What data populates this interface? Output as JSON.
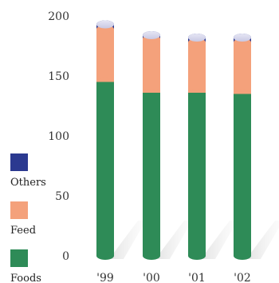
{
  "chart_data": {
    "type": "bar",
    "stacked": true,
    "categories": [
      "'99",
      "'00",
      "'01",
      "'02"
    ],
    "series": [
      {
        "name": "Foods",
        "color": "#2e8b57",
        "values": [
          145,
          136,
          136,
          135
        ]
      },
      {
        "name": "Feed",
        "color": "#f4a17b",
        "values": [
          44,
          45,
          42,
          43
        ]
      },
      {
        "name": "Others",
        "color": "#2b3990",
        "values": [
          4,
          3,
          4,
          4
        ]
      }
    ],
    "y_ticks": [
      "0",
      "50",
      "100",
      "150",
      "200"
    ],
    "ylim": [
      0,
      200
    ],
    "title": "",
    "xlabel": "",
    "ylabel": "",
    "legend_position": "left",
    "grid": false
  }
}
